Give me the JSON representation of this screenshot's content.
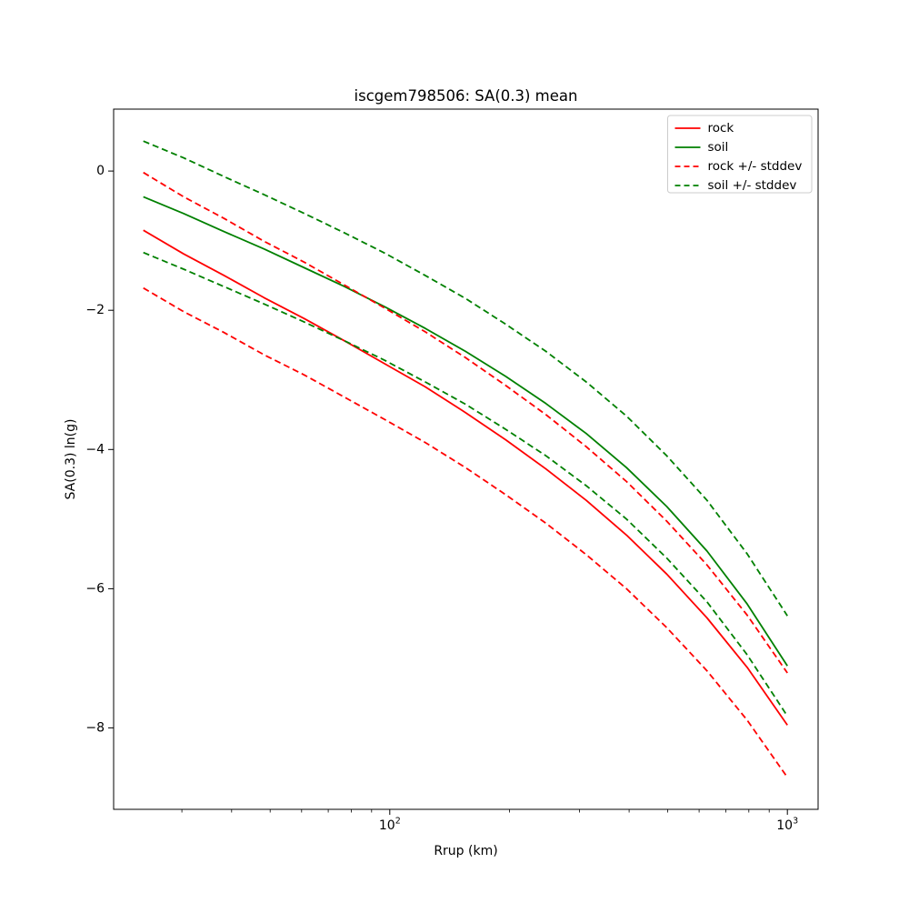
{
  "chart": {
    "title": "iscgem798506: SA(0.3) mean",
    "xlabel": "Rrup (km)",
    "ylabel": "SA(0.3) ln(g)",
    "x_major_ticks": [
      {
        "value": 100,
        "base": "10",
        "exp": "2"
      },
      {
        "value": 1000,
        "base": "10",
        "exp": "3"
      }
    ],
    "x_minor_ticks": [
      30,
      40,
      50,
      60,
      70,
      80,
      90,
      200,
      300,
      400,
      500,
      600,
      700,
      800,
      900
    ],
    "y_ticks": [
      {
        "value": 0,
        "label": "0"
      },
      {
        "value": -2,
        "label": "−2"
      },
      {
        "value": -4,
        "label": "−4"
      },
      {
        "value": -6,
        "label": "−6"
      },
      {
        "value": -8,
        "label": "−8"
      }
    ],
    "legend": [
      {
        "label": "rock",
        "color": "#ff0000",
        "dash": false
      },
      {
        "label": "soil",
        "color": "#008000",
        "dash": false
      },
      {
        "label": "rock +/- stddev",
        "color": "#ff0000",
        "dash": true
      },
      {
        "label": "soil +/- stddev",
        "color": "#008000",
        "dash": true
      }
    ],
    "colors": {
      "rock": "#ff0000",
      "soil": "#008000"
    }
  },
  "chart_data": {
    "type": "line",
    "title": "iscgem798506: SA(0.3) mean",
    "xlabel": "Rrup (km)",
    "ylabel": "SA(0.3) ln(g)",
    "x_scale": "log",
    "y_scale": "linear",
    "grid": false,
    "legend_position": "upper right",
    "xlim": [
      20.2,
      1195
    ],
    "ylim": [
      -9.17,
      0.89
    ],
    "x": [
      24,
      30.3,
      38.3,
      48.3,
      61,
      77,
      97.2,
      122.8,
      155,
      195.7,
      247.1,
      312,
      393.9,
      497.3,
      627.9,
      792.7,
      1000
    ],
    "series": [
      {
        "name": "rock",
        "color": "#ff0000",
        "style": "solid",
        "values": [
          -0.85,
          -1.19,
          -1.5,
          -1.82,
          -2.12,
          -2.44,
          -2.77,
          -3.1,
          -3.47,
          -3.86,
          -4.28,
          -4.73,
          -5.23,
          -5.79,
          -6.42,
          -7.13,
          -7.96
        ]
      },
      {
        "name": "soil",
        "color": "#008000",
        "style": "solid",
        "values": [
          -0.37,
          -0.61,
          -0.87,
          -1.12,
          -1.39,
          -1.66,
          -1.95,
          -2.26,
          -2.59,
          -2.95,
          -3.34,
          -3.77,
          -4.26,
          -4.82,
          -5.46,
          -6.22,
          -7.11
        ]
      },
      {
        "name": "rock plus stddev",
        "color": "#ff0000",
        "style": "dashed",
        "values": [
          -0.02,
          -0.37,
          -0.68,
          -1.01,
          -1.31,
          -1.64,
          -1.97,
          -2.31,
          -2.68,
          -3.08,
          -3.5,
          -3.96,
          -4.46,
          -5.03,
          -5.66,
          -6.38,
          -7.21
        ]
      },
      {
        "name": "rock minus stddev",
        "color": "#ff0000",
        "style": "dashed",
        "values": [
          -1.68,
          -2.02,
          -2.32,
          -2.64,
          -2.93,
          -3.25,
          -3.57,
          -3.9,
          -4.26,
          -4.65,
          -5.06,
          -5.51,
          -6.0,
          -6.56,
          -7.18,
          -7.89,
          -8.71
        ]
      },
      {
        "name": "soil plus stddev",
        "color": "#008000",
        "style": "dashed",
        "values": [
          0.43,
          0.19,
          -0.08,
          -0.34,
          -0.61,
          -0.89,
          -1.18,
          -1.5,
          -1.83,
          -2.2,
          -2.59,
          -3.03,
          -3.52,
          -4.09,
          -4.73,
          -5.5,
          -6.39
        ]
      },
      {
        "name": "soil minus stddev",
        "color": "#008000",
        "style": "dashed",
        "values": [
          -1.17,
          -1.41,
          -1.66,
          -1.91,
          -2.17,
          -2.44,
          -2.72,
          -3.03,
          -3.35,
          -3.71,
          -4.09,
          -4.52,
          -5.0,
          -5.56,
          -6.19,
          -6.95,
          -7.83
        ]
      }
    ]
  }
}
